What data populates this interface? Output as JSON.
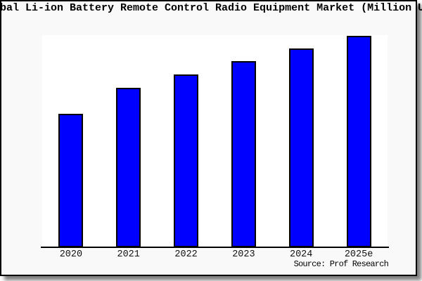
{
  "title": {
    "visible_text": "bal Li-ion Battery Remote Control Radio Equipment Market (Million U"
  },
  "source_note": "Source: Prof Research",
  "colors": {
    "bar_fill": "#0000ff",
    "bar_border": "#000000",
    "frame_background": "#f9f9f9",
    "plot_background": "#ffffff",
    "frame_border": "#000000",
    "axis_line": "#000000"
  },
  "chart_data": {
    "type": "bar",
    "title": "bal Li-ion Battery Remote Control Radio Equipment Market (Million U",
    "categories": [
      "2020",
      "2021",
      "2022",
      "2023",
      "2024",
      "2025e"
    ],
    "values": [
      62.9,
      75.2,
      81.5,
      87.7,
      93.7,
      99.8
    ],
    "value_units": "relative bar height (% of scale); y-axis has no tick labels in image",
    "xlabel": "",
    "ylabel": "",
    "ylim": [
      0,
      100
    ],
    "grid": false,
    "legend": "none",
    "source": "Source: Prof Research"
  }
}
